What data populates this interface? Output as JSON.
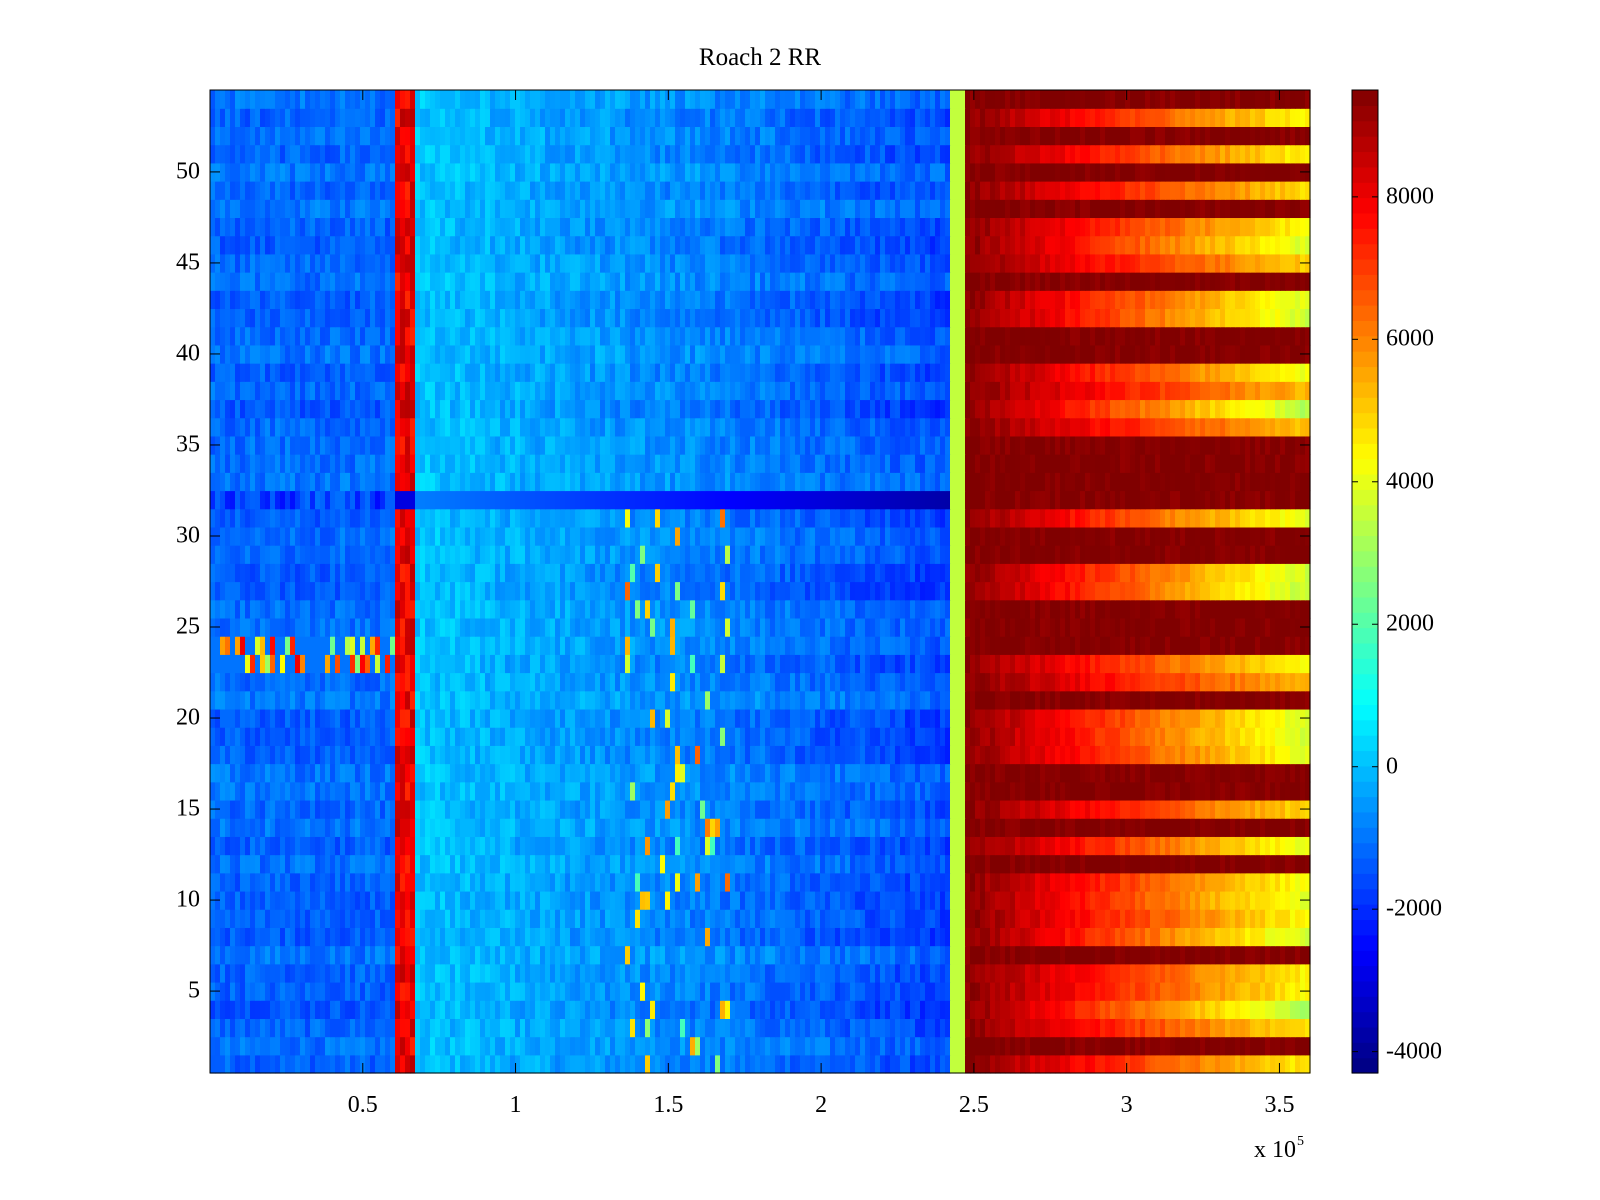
{
  "chart_data": {
    "type": "heatmap",
    "title": "Roach 2 RR",
    "xlabel": "",
    "ylabel": "",
    "x_multiplier_label": {
      "prefix": "x 10",
      "exponent": "5"
    },
    "xlim": [
      0,
      360000
    ],
    "ylim": [
      0.5,
      54.5
    ],
    "x_ticks": [
      {
        "value": 0.5,
        "label": "0.5"
      },
      {
        "value": 1,
        "label": "1"
      },
      {
        "value": 1.5,
        "label": "1.5"
      },
      {
        "value": 2,
        "label": "2"
      },
      {
        "value": 2.5,
        "label": "2.5"
      },
      {
        "value": 3,
        "label": "3"
      },
      {
        "value": 3.5,
        "label": "3.5"
      }
    ],
    "y_ticks": [
      {
        "value": 5,
        "label": "5"
      },
      {
        "value": 10,
        "label": "10"
      },
      {
        "value": 15,
        "label": "15"
      },
      {
        "value": 20,
        "label": "20"
      },
      {
        "value": 25,
        "label": "25"
      },
      {
        "value": 30,
        "label": "30"
      },
      {
        "value": 35,
        "label": "35"
      },
      {
        "value": 40,
        "label": "40"
      },
      {
        "value": 45,
        "label": "45"
      },
      {
        "value": 50,
        "label": "50"
      }
    ],
    "colorbar": {
      "colormap": "jet",
      "clim": [
        -4300,
        9500
      ],
      "ticks": [
        {
          "value": -4000,
          "label": "-4000"
        },
        {
          "value": -2000,
          "label": "-2000"
        },
        {
          "value": 0,
          "label": "0"
        },
        {
          "value": 2000,
          "label": "2000"
        },
        {
          "value": 4000,
          "label": "4000"
        },
        {
          "value": 6000,
          "label": "6000"
        },
        {
          "value": 8000,
          "label": "8000"
        }
      ]
    },
    "structure_description_values": {
      "rows": 54,
      "baseline_value_left_region": -900,
      "baseline_value_middle_region": -300,
      "baseline_value_right_region": 8500,
      "transition_x": 245000,
      "spike_column_x": 64000,
      "spike_value": 8000,
      "dark_row_index": 32,
      "dark_row_min_value": -3800
    }
  }
}
